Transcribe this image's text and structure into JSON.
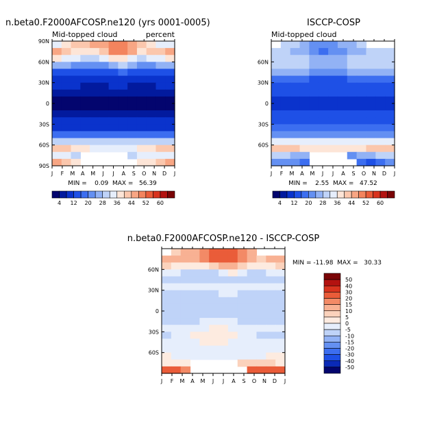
{
  "colors": {
    "abs": [
      "#03056e",
      "#021a9e",
      "#0a33cc",
      "#1e50e6",
      "#3c6ef0",
      "#6490f2",
      "#92b2f5",
      "#bfd3f8",
      "#e6eefc",
      "#fde5d7",
      "#fbc7ad",
      "#f8a684",
      "#f3845e",
      "#ea5c39",
      "#d8331e",
      "#b31210",
      "#7a0406"
    ],
    "diff": [
      "#03056e",
      "#0a2ab8",
      "#1e50e6",
      "#3c6ef0",
      "#6490f2",
      "#92b2f5",
      "#bfd3f8",
      "#e6eefc",
      "#fdebe0",
      "#fbd2bc",
      "#f8b193",
      "#f38a66",
      "#ea5c39",
      "#d8331e",
      "#b31210",
      "#7a0406"
    ]
  },
  "chart_data": [
    {
      "id": "model",
      "type": "heatmap",
      "title": "n.beta0.F2000AFCOSP.ne120 (yrs 0001-0005)",
      "subtitle_left": "Mid-topped cloud",
      "subtitle_right": "percent",
      "xticks": [
        "J",
        "F",
        "M",
        "A",
        "M",
        "J",
        "J",
        "A",
        "S",
        "O",
        "N",
        "D",
        "J"
      ],
      "yticks": [
        "90N",
        "60N",
        "30N",
        "0",
        "30S",
        "60S",
        "90S"
      ],
      "yvalues": [
        90,
        60,
        30,
        0,
        -30,
        -60,
        -90
      ],
      "ylim": [
        -90,
        90
      ],
      "stats": "MIN =    0.09  MAX =   56.39",
      "levels": [
        "4",
        "12",
        "20",
        "28",
        "36",
        "44",
        "52",
        "60"
      ],
      "grid": {
        "lat": [
          85,
          75,
          65,
          55,
          45,
          35,
          25,
          15,
          5,
          -5,
          -15,
          -25,
          -35,
          -45,
          -55,
          -65,
          -75,
          -85
        ],
        "mon": [
          "J",
          "F",
          "M",
          "A",
          "M",
          "J",
          "J",
          "A",
          "S",
          "O",
          "N",
          "D",
          "J"
        ],
        "values": [
          [
            34,
            38,
            40,
            42,
            44,
            46,
            48,
            48,
            44,
            40,
            36,
            34,
            34
          ],
          [
            44,
            42,
            38,
            36,
            38,
            42,
            48,
            50,
            44,
            38,
            40,
            42,
            44
          ],
          [
            36,
            34,
            32,
            30,
            30,
            32,
            36,
            38,
            34,
            30,
            32,
            34,
            36
          ],
          [
            26,
            24,
            22,
            20,
            20,
            22,
            26,
            28,
            24,
            20,
            22,
            24,
            26
          ],
          [
            14,
            14,
            14,
            13,
            12,
            13,
            15,
            16,
            14,
            12,
            12,
            13,
            14
          ],
          [
            9,
            9,
            9,
            9,
            8,
            9,
            10,
            10,
            9,
            8,
            8,
            9,
            9
          ],
          [
            8,
            8,
            8,
            7,
            7,
            7,
            8,
            8,
            7,
            7,
            7,
            8,
            8
          ],
          [
            5,
            5,
            5,
            5,
            5,
            5,
            6,
            6,
            5,
            5,
            5,
            5,
            5
          ],
          [
            2,
            2,
            2,
            2,
            2,
            3,
            3,
            3,
            3,
            2,
            2,
            2,
            2
          ],
          [
            2,
            2,
            2,
            2,
            2,
            2,
            3,
            3,
            3,
            2,
            2,
            2,
            2
          ],
          [
            5,
            5,
            5,
            5,
            5,
            5,
            6,
            6,
            5,
            5,
            5,
            5,
            5
          ],
          [
            9,
            9,
            9,
            9,
            9,
            8,
            8,
            8,
            9,
            9,
            9,
            9,
            9
          ],
          [
            11,
            11,
            11,
            10,
            10,
            10,
            10,
            10,
            10,
            11,
            11,
            11,
            11
          ],
          [
            18,
            18,
            18,
            18,
            18,
            18,
            18,
            18,
            18,
            18,
            18,
            18,
            18
          ],
          [
            30,
            30,
            30,
            30,
            30,
            30,
            30,
            30,
            30,
            30,
            30,
            30,
            30
          ],
          [
            40,
            40,
            38,
            36,
            34,
            34,
            34,
            34,
            34,
            36,
            38,
            40,
            40
          ],
          [
            32,
            32,
            30,
            null,
            null,
            null,
            null,
            null,
            30,
            32,
            32,
            32,
            32
          ],
          [
            44,
            40,
            38,
            null,
            null,
            null,
            null,
            null,
            null,
            36,
            38,
            40,
            44
          ]
        ]
      }
    },
    {
      "id": "obs",
      "type": "heatmap",
      "title": "ISCCP-COSP",
      "subtitle_left": "Mid-topped cloud",
      "xticks": [
        "J",
        "F",
        "M",
        "A",
        "M",
        "J",
        "J",
        "A",
        "S",
        "O",
        "N",
        "D",
        "J"
      ],
      "yticks": [
        "60N",
        "30N",
        "0",
        "30S",
        "60S"
      ],
      "yvalues": [
        60,
        30,
        0,
        -30,
        -60
      ],
      "ylim": [
        -90,
        90
      ],
      "stats": "MIN =    2.55  MAX =   47.52",
      "levels": [
        "4",
        "12",
        "20",
        "28",
        "36",
        "44",
        "52",
        "60"
      ],
      "grid": {
        "lat": [
          85,
          75,
          65,
          55,
          45,
          35,
          25,
          15,
          5,
          -5,
          -15,
          -25,
          -35,
          -45,
          -55,
          -65,
          -75,
          -85
        ],
        "mon": [
          "J",
          "F",
          "M",
          "A",
          "M",
          "J",
          "J",
          "A",
          "S",
          "O",
          "N",
          "D",
          "J"
        ],
        "values": [
          [
            null,
            28,
            28,
            24,
            22,
            20,
            22,
            24,
            26,
            28,
            null,
            null,
            null
          ],
          [
            28,
            28,
            26,
            24,
            20,
            18,
            20,
            22,
            24,
            26,
            30,
            30,
            28
          ],
          [
            30,
            30,
            30,
            28,
            26,
            24,
            24,
            26,
            28,
            28,
            30,
            30,
            30
          ],
          [
            28,
            28,
            28,
            28,
            27,
            26,
            26,
            27,
            28,
            28,
            28,
            28,
            28
          ],
          [
            24,
            24,
            24,
            24,
            23,
            22,
            22,
            23,
            24,
            24,
            24,
            24,
            24
          ],
          [
            16,
            16,
            16,
            16,
            15,
            14,
            14,
            15,
            16,
            16,
            16,
            16,
            16
          ],
          [
            13,
            13,
            13,
            13,
            12,
            12,
            12,
            12,
            13,
            13,
            13,
            13,
            13
          ],
          [
            12,
            12,
            12,
            12,
            12,
            12,
            12,
            12,
            12,
            12,
            12,
            12,
            12
          ],
          [
            11,
            11,
            10,
            10,
            10,
            10,
            10,
            10,
            10,
            10,
            10,
            11,
            11
          ],
          [
            11,
            11,
            11,
            11,
            10,
            10,
            10,
            10,
            10,
            10,
            11,
            11,
            11
          ],
          [
            13,
            13,
            13,
            13,
            13,
            13,
            13,
            13,
            13,
            13,
            13,
            13,
            13
          ],
          [
            14,
            14,
            14,
            14,
            14,
            14,
            14,
            14,
            14,
            14,
            14,
            14,
            14
          ],
          [
            16,
            16,
            16,
            16,
            16,
            16,
            16,
            16,
            16,
            16,
            16,
            16,
            16
          ],
          [
            20,
            20,
            20,
            20,
            20,
            20,
            20,
            20,
            20,
            20,
            20,
            20,
            20
          ],
          [
            34,
            34,
            34,
            34,
            34,
            34,
            34,
            34,
            34,
            34,
            34,
            34,
            34
          ],
          [
            40,
            42,
            40,
            38,
            38,
            36,
            36,
            36,
            36,
            38,
            40,
            40,
            40
          ],
          [
            28,
            28,
            26,
            26,
            null,
            null,
            null,
            null,
            22,
            24,
            26,
            28,
            28
          ],
          [
            20,
            20,
            20,
            18,
            null,
            null,
            null,
            null,
            null,
            16,
            14,
            16,
            20
          ]
        ]
      }
    },
    {
      "id": "diff",
      "type": "heatmap",
      "title": "n.beta0.F2000AFCOSP.ne120 - ISCCP-COSP",
      "xticks": [
        "J",
        "F",
        "M",
        "A",
        "M",
        "J",
        "J",
        "A",
        "S",
        "O",
        "N",
        "D",
        "J"
      ],
      "yticks": [
        "60N",
        "30N",
        "0",
        "30S",
        "60S"
      ],
      "yvalues": [
        60,
        30,
        0,
        -30,
        -60
      ],
      "ylim": [
        -90,
        90
      ],
      "stats": "MIN = -11.98  MAX =   30.33",
      "levels": [
        "50",
        "40",
        "30",
        "20",
        "15",
        "10",
        "5",
        "0",
        "-5",
        "-10",
        "-15",
        "-20",
        "-30",
        "-40",
        "-50"
      ],
      "grid": {
        "lat": [
          85,
          75,
          65,
          55,
          45,
          35,
          25,
          15,
          5,
          -5,
          -15,
          -25,
          -35,
          -45,
          -55,
          -65,
          -75,
          -85
        ],
        "mon": [
          "J",
          "F",
          "M",
          "A",
          "M",
          "J",
          "J",
          "A",
          "S",
          "O",
          "N",
          "D",
          "J"
        ],
        "values": [
          [
            null,
            8,
            10,
            14,
            18,
            22,
            24,
            22,
            16,
            10,
            null,
            null,
            null
          ],
          [
            14,
            12,
            10,
            10,
            16,
            22,
            26,
            26,
            18,
            10,
            8,
            10,
            14
          ],
          [
            6,
            4,
            2,
            2,
            4,
            8,
            12,
            12,
            6,
            2,
            2,
            4,
            6
          ],
          [
            -4,
            -4,
            -6,
            -8,
            -8,
            -6,
            -2,
            0,
            -4,
            -8,
            -6,
            -4,
            -4
          ],
          [
            -8,
            -8,
            -9,
            -10,
            -10,
            -8,
            -6,
            -6,
            -8,
            -10,
            -10,
            -9,
            -8
          ],
          [
            -4,
            -4,
            -4,
            -4,
            -4,
            -4,
            -3,
            -3,
            -4,
            -4,
            -4,
            -4,
            -4
          ],
          [
            -6,
            -6,
            -6,
            -6,
            -6,
            -6,
            -5,
            -5,
            -6,
            -6,
            -6,
            -6,
            -6
          ],
          [
            -6,
            -6,
            -6,
            -6,
            -6,
            -6,
            -6,
            -6,
            -6,
            -6,
            -6,
            -6,
            -6
          ],
          [
            -8,
            -8,
            -8,
            -9,
            -9,
            -8,
            -8,
            -8,
            -8,
            -8,
            -8,
            -8,
            -8
          ],
          [
            -7,
            -7,
            -7,
            -7,
            -7,
            -7,
            -7,
            -7,
            -7,
            -7,
            -7,
            -7,
            -7
          ],
          [
            -8,
            -8,
            -8,
            -6,
            -4,
            -4,
            -4,
            -4,
            -6,
            -8,
            -8,
            -8,
            -8
          ],
          [
            -4,
            -4,
            -3,
            -2,
            -1,
            0,
            0,
            -1,
            -2,
            -3,
            -4,
            -4,
            -4
          ],
          [
            -6,
            -4,
            -2,
            0,
            2,
            2,
            2,
            0,
            -2,
            -4,
            -6,
            -6,
            -6
          ],
          [
            -2,
            -2,
            -2,
            -1,
            0,
            0,
            0,
            -1,
            -2,
            -2,
            -2,
            -2,
            -2
          ],
          [
            -4,
            -4,
            -4,
            -4,
            -4,
            -4,
            -4,
            -4,
            -4,
            -4,
            -4,
            -4,
            -4
          ],
          [
            0,
            -2,
            -2,
            -2,
            -4,
            -4,
            -2,
            -2,
            -2,
            -2,
            -2,
            0,
            0
          ],
          [
            4,
            4,
            4,
            null,
            null,
            null,
            null,
            null,
            8,
            8,
            6,
            6,
            4
          ],
          [
            24,
            20,
            18,
            null,
            null,
            null,
            null,
            null,
            null,
            20,
            22,
            22,
            24
          ]
        ]
      }
    }
  ]
}
